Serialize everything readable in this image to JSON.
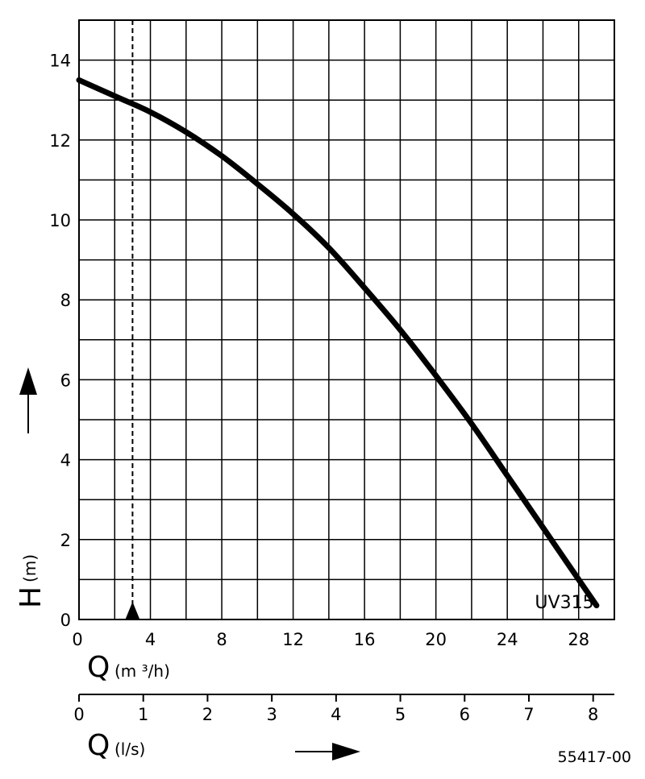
{
  "chart_data": {
    "type": "line",
    "title": "",
    "model_label": "UV315",
    "document_number": "55417-00",
    "y_axis": {
      "letter": "H",
      "unit": "(m)",
      "range": [
        0,
        15
      ],
      "ticks": [
        0,
        2,
        4,
        6,
        8,
        10,
        12,
        14
      ],
      "tick_labels": [
        "0",
        "2",
        "4",
        "6",
        "8",
        "10",
        "12",
        "14"
      ],
      "grid_step": 1
    },
    "x_axis_primary": {
      "letter": "Q",
      "unit": "(m ³/h)",
      "range": [
        0,
        30
      ],
      "ticks": [
        0,
        4,
        8,
        12,
        16,
        20,
        24,
        28
      ],
      "tick_labels": [
        "0",
        "4",
        "8",
        "12",
        "16",
        "20",
        "24",
        "28"
      ],
      "grid_step": 2
    },
    "x_axis_secondary": {
      "letter": "Q",
      "unit": "(l/s)",
      "range": [
        0,
        8.33
      ],
      "ticks": [
        0,
        1,
        2,
        3,
        4,
        5,
        6,
        7,
        8
      ],
      "tick_labels": [
        "0",
        "1",
        "2",
        "3",
        "4",
        "5",
        "6",
        "7",
        "8"
      ]
    },
    "grid": true,
    "reference_line": {
      "x": 3
    },
    "series": [
      {
        "x": [
          0,
          2,
          4,
          6,
          8,
          10,
          12,
          14,
          16,
          18,
          20,
          22,
          24,
          26,
          28,
          29
        ],
        "y": [
          13.5,
          13.1,
          12.7,
          12.2,
          11.6,
          10.9,
          10.15,
          9.3,
          8.3,
          7.25,
          6.1,
          4.9,
          3.6,
          2.3,
          1.0,
          0.35
        ]
      }
    ]
  }
}
